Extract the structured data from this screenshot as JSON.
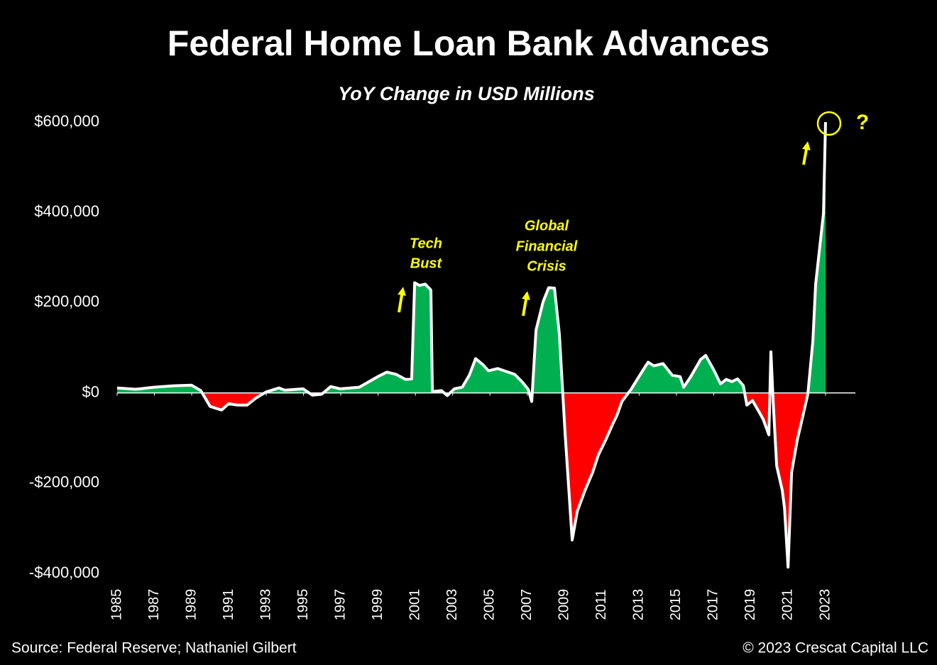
{
  "chart_data": {
    "type": "area",
    "title": "Federal Home Loan Bank Advances",
    "subtitle": "YoY Change in USD Millions",
    "source": "Source: Federal Reserve; Nathaniel Gilbert",
    "copyright": "© 2023 Crescat Capital LLC",
    "annotations": [
      {
        "lines": [
          "Tech",
          "Bust"
        ]
      },
      {
        "lines": [
          "Global",
          "Financial",
          "Crisis"
        ]
      },
      {
        "lines": [
          "?"
        ]
      }
    ],
    "positive_color": "#00b050",
    "negative_color": "#ff0000",
    "line_color": "#ffffff",
    "xlim": [
      1985,
      2024.6
    ],
    "xticks": [
      1985,
      1987,
      1989,
      1991,
      1993,
      1995,
      1997,
      1999,
      2001,
      2003,
      2005,
      2007,
      2009,
      2011,
      2013,
      2015,
      2017,
      2019,
      2021,
      2023
    ],
    "ylim": [
      -400000,
      600000
    ],
    "yticks": [
      {
        "value": 600000,
        "label": "$600,000"
      },
      {
        "value": 400000,
        "label": "$400,000"
      },
      {
        "value": 200000,
        "label": "$200,000"
      },
      {
        "value": 0,
        "label": "$0"
      },
      {
        "value": -200000,
        "label": "-$200,000"
      },
      {
        "value": -400000,
        "label": "-$400,000"
      }
    ],
    "x": [
      1985.0,
      1986.0,
      1986.98,
      1988.01,
      1989.0,
      1989.49,
      1989.99,
      1990.6,
      1990.98,
      1991.47,
      1991.97,
      1992.46,
      1992.99,
      1993.68,
      1993.99,
      1994.98,
      1995.47,
      1995.97,
      1996.46,
      1996.96,
      1997.99,
      1998.98,
      1999.47,
      1999.97,
      2000.46,
      2000.8,
      2000.96,
      2001.22,
      2001.53,
      2001.83,
      2001.91,
      2002.4,
      2002.71,
      2003.09,
      2003.51,
      2003.89,
      2004.23,
      2004.61,
      2004.92,
      2005.41,
      2005.91,
      2006.33,
      2006.71,
      2007.05,
      2007.24,
      2007.47,
      2007.85,
      2008.15,
      2008.46,
      2008.72,
      2009.03,
      2009.41,
      2009.68,
      2010.1,
      2010.51,
      2010.82,
      2011.2,
      2011.62,
      2011.81,
      2012.08,
      2012.57,
      2012.99,
      2013.48,
      2013.79,
      2014.28,
      2014.78,
      2015.2,
      2015.39,
      2015.77,
      2016.3,
      2016.57,
      2016.99,
      2017.37,
      2017.67,
      2017.98,
      2018.28,
      2018.59,
      2018.78,
      2019.08,
      2019.39,
      2019.65,
      2019.96,
      2020.07,
      2020.19,
      2020.38,
      2020.68,
      2020.8,
      2020.99,
      2021.18,
      2021.48,
      2021.79,
      2022.05,
      2022.32,
      2022.47,
      2022.89,
      2023.0
    ],
    "values": [
      11000,
      8000,
      12600,
      15750,
      17000,
      5000,
      -30000,
      -38000,
      -24000,
      -27000,
      -27000,
      -11000,
      2000,
      11000,
      6000,
      9000,
      -5000,
      -3000,
      14000,
      9000,
      12600,
      36000,
      46000,
      41000,
      30000,
      31000,
      244000,
      238000,
      241000,
      228000,
      3000,
      5000,
      -6000,
      9000,
      12600,
      39000,
      76000,
      63000,
      49000,
      54000,
      47000,
      41000,
      25000,
      8000,
      -19000,
      139000,
      202000,
      233000,
      232000,
      131000,
      -90000,
      -326000,
      -263000,
      -216000,
      -176000,
      -137000,
      -105000,
      -66000,
      -50000,
      -19000,
      8000,
      36000,
      68000,
      60000,
      65000,
      39000,
      36000,
      12600,
      36000,
      74000,
      83000,
      52000,
      20000,
      30000,
      25000,
      31000,
      16000,
      -27000,
      -17000,
      -39000,
      -58000,
      -93000,
      91000,
      -19000,
      -162000,
      -216000,
      -255000,
      -386000,
      -176000,
      -105000,
      -50000,
      -3000,
      115000,
      241000,
      398000,
      600000
    ]
  }
}
